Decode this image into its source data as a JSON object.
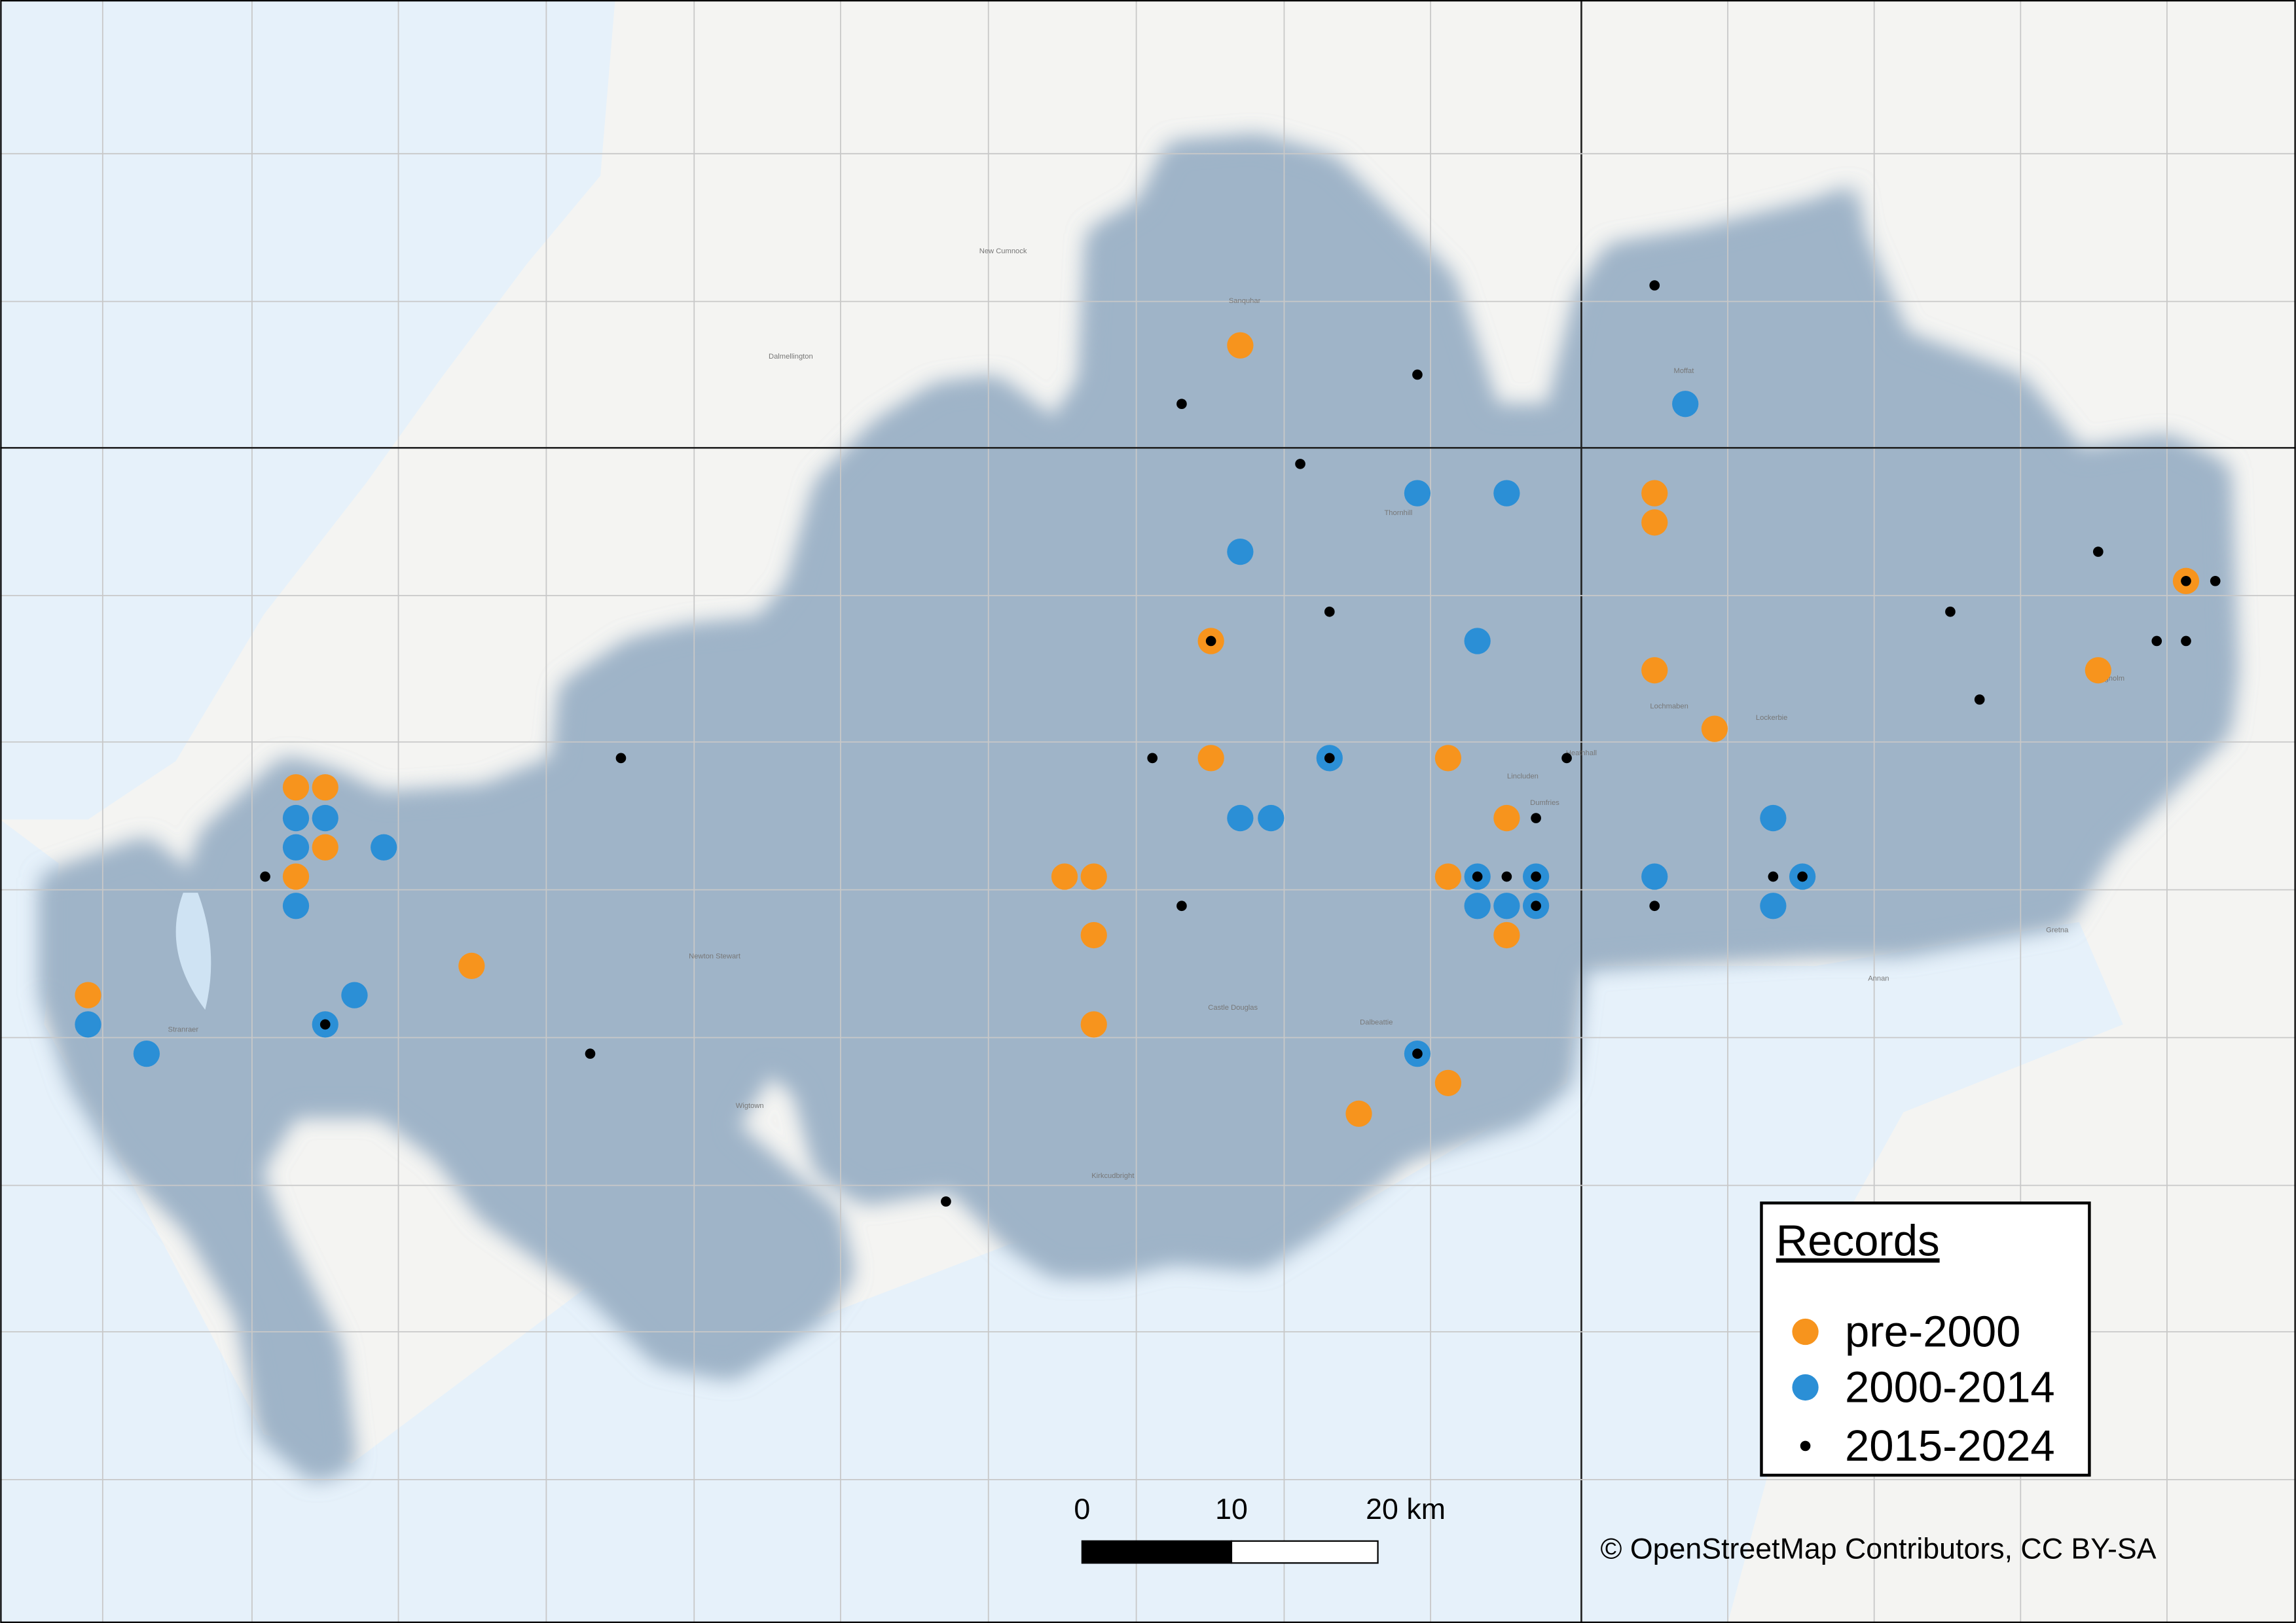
{
  "map": {
    "places": [
      "Sanquhar",
      "New Cumnock",
      "Dalmellington",
      "Moffat",
      "Thornhill",
      "Lochmaben",
      "Lockerbie",
      "Lincluden",
      "Heathhall",
      "Dumfries",
      "Annan",
      "Gretna",
      "Langholm",
      "Newton Stewart",
      "Castle Douglas",
      "Dalbeattie",
      "Kirkcudbright",
      "Wigtown",
      "Stranraer"
    ],
    "legend": {
      "title": "Records",
      "entries": [
        "pre-2000",
        "2000-2014",
        "2015-2024"
      ]
    },
    "scale_bar": {
      "labels": [
        "0",
        "10",
        "20 km"
      ]
    },
    "attribution": "© OpenStreetMap Contributors, CC BY-SA"
  }
}
